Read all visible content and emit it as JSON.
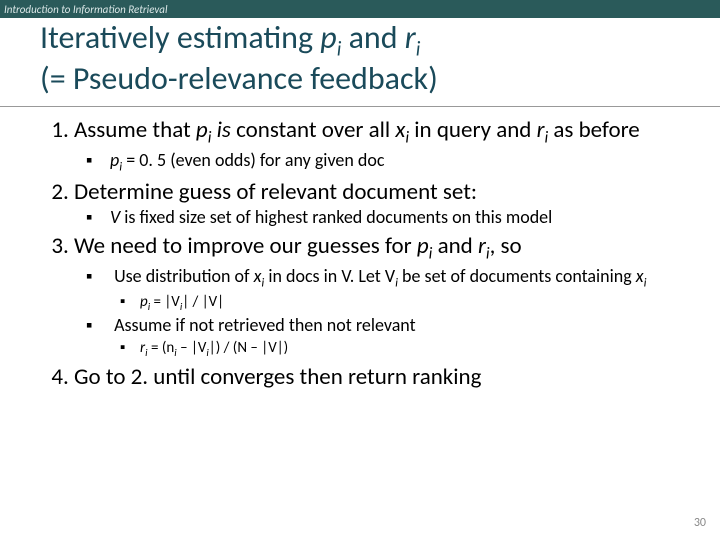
{
  "header": "Introduction to Information Retrieval",
  "title_line1_a": "Iteratively estimating ",
  "title_line1_b": " and ",
  "title_line2": "(= Pseudo-relevance feedback)",
  "p": "p",
  "r": "r",
  "i": "i",
  "item1_a": "Assume that ",
  "item1_b": " constant over all ",
  "item1_c": "  in query and ",
  "item1_d": " as before",
  "is": "is",
  "x": "x",
  "item1_sub": " = 0. 5 (even odds) for any given doc",
  "item2": "Determine guess of relevant document set:",
  "item2_sub_a": " is fixed size set of highest ranked documents on this model",
  "V": "V",
  "item3_a": "We need to improve our guesses for ",
  "item3_b": " and ",
  "item3_c": ", so",
  "item3_sub1_a": "Use distribution of ",
  "item3_sub1_b": " in docs in V. Let V",
  "item3_sub1_c": " be set of documents containing ",
  "item3_sub1_eq": " = |V",
  "item3_sub1_eq2": "| / |V|",
  "item3_sub2": "Assume if not retrieved then not relevant",
  "item3_sub2_eq_a": "  = (n",
  "item3_sub2_eq_b": " – |V",
  "item3_sub2_eq_c": "|) / (N – |V|)",
  "item4": "Go to 2. until converges then return ranking",
  "pagenum": "30"
}
